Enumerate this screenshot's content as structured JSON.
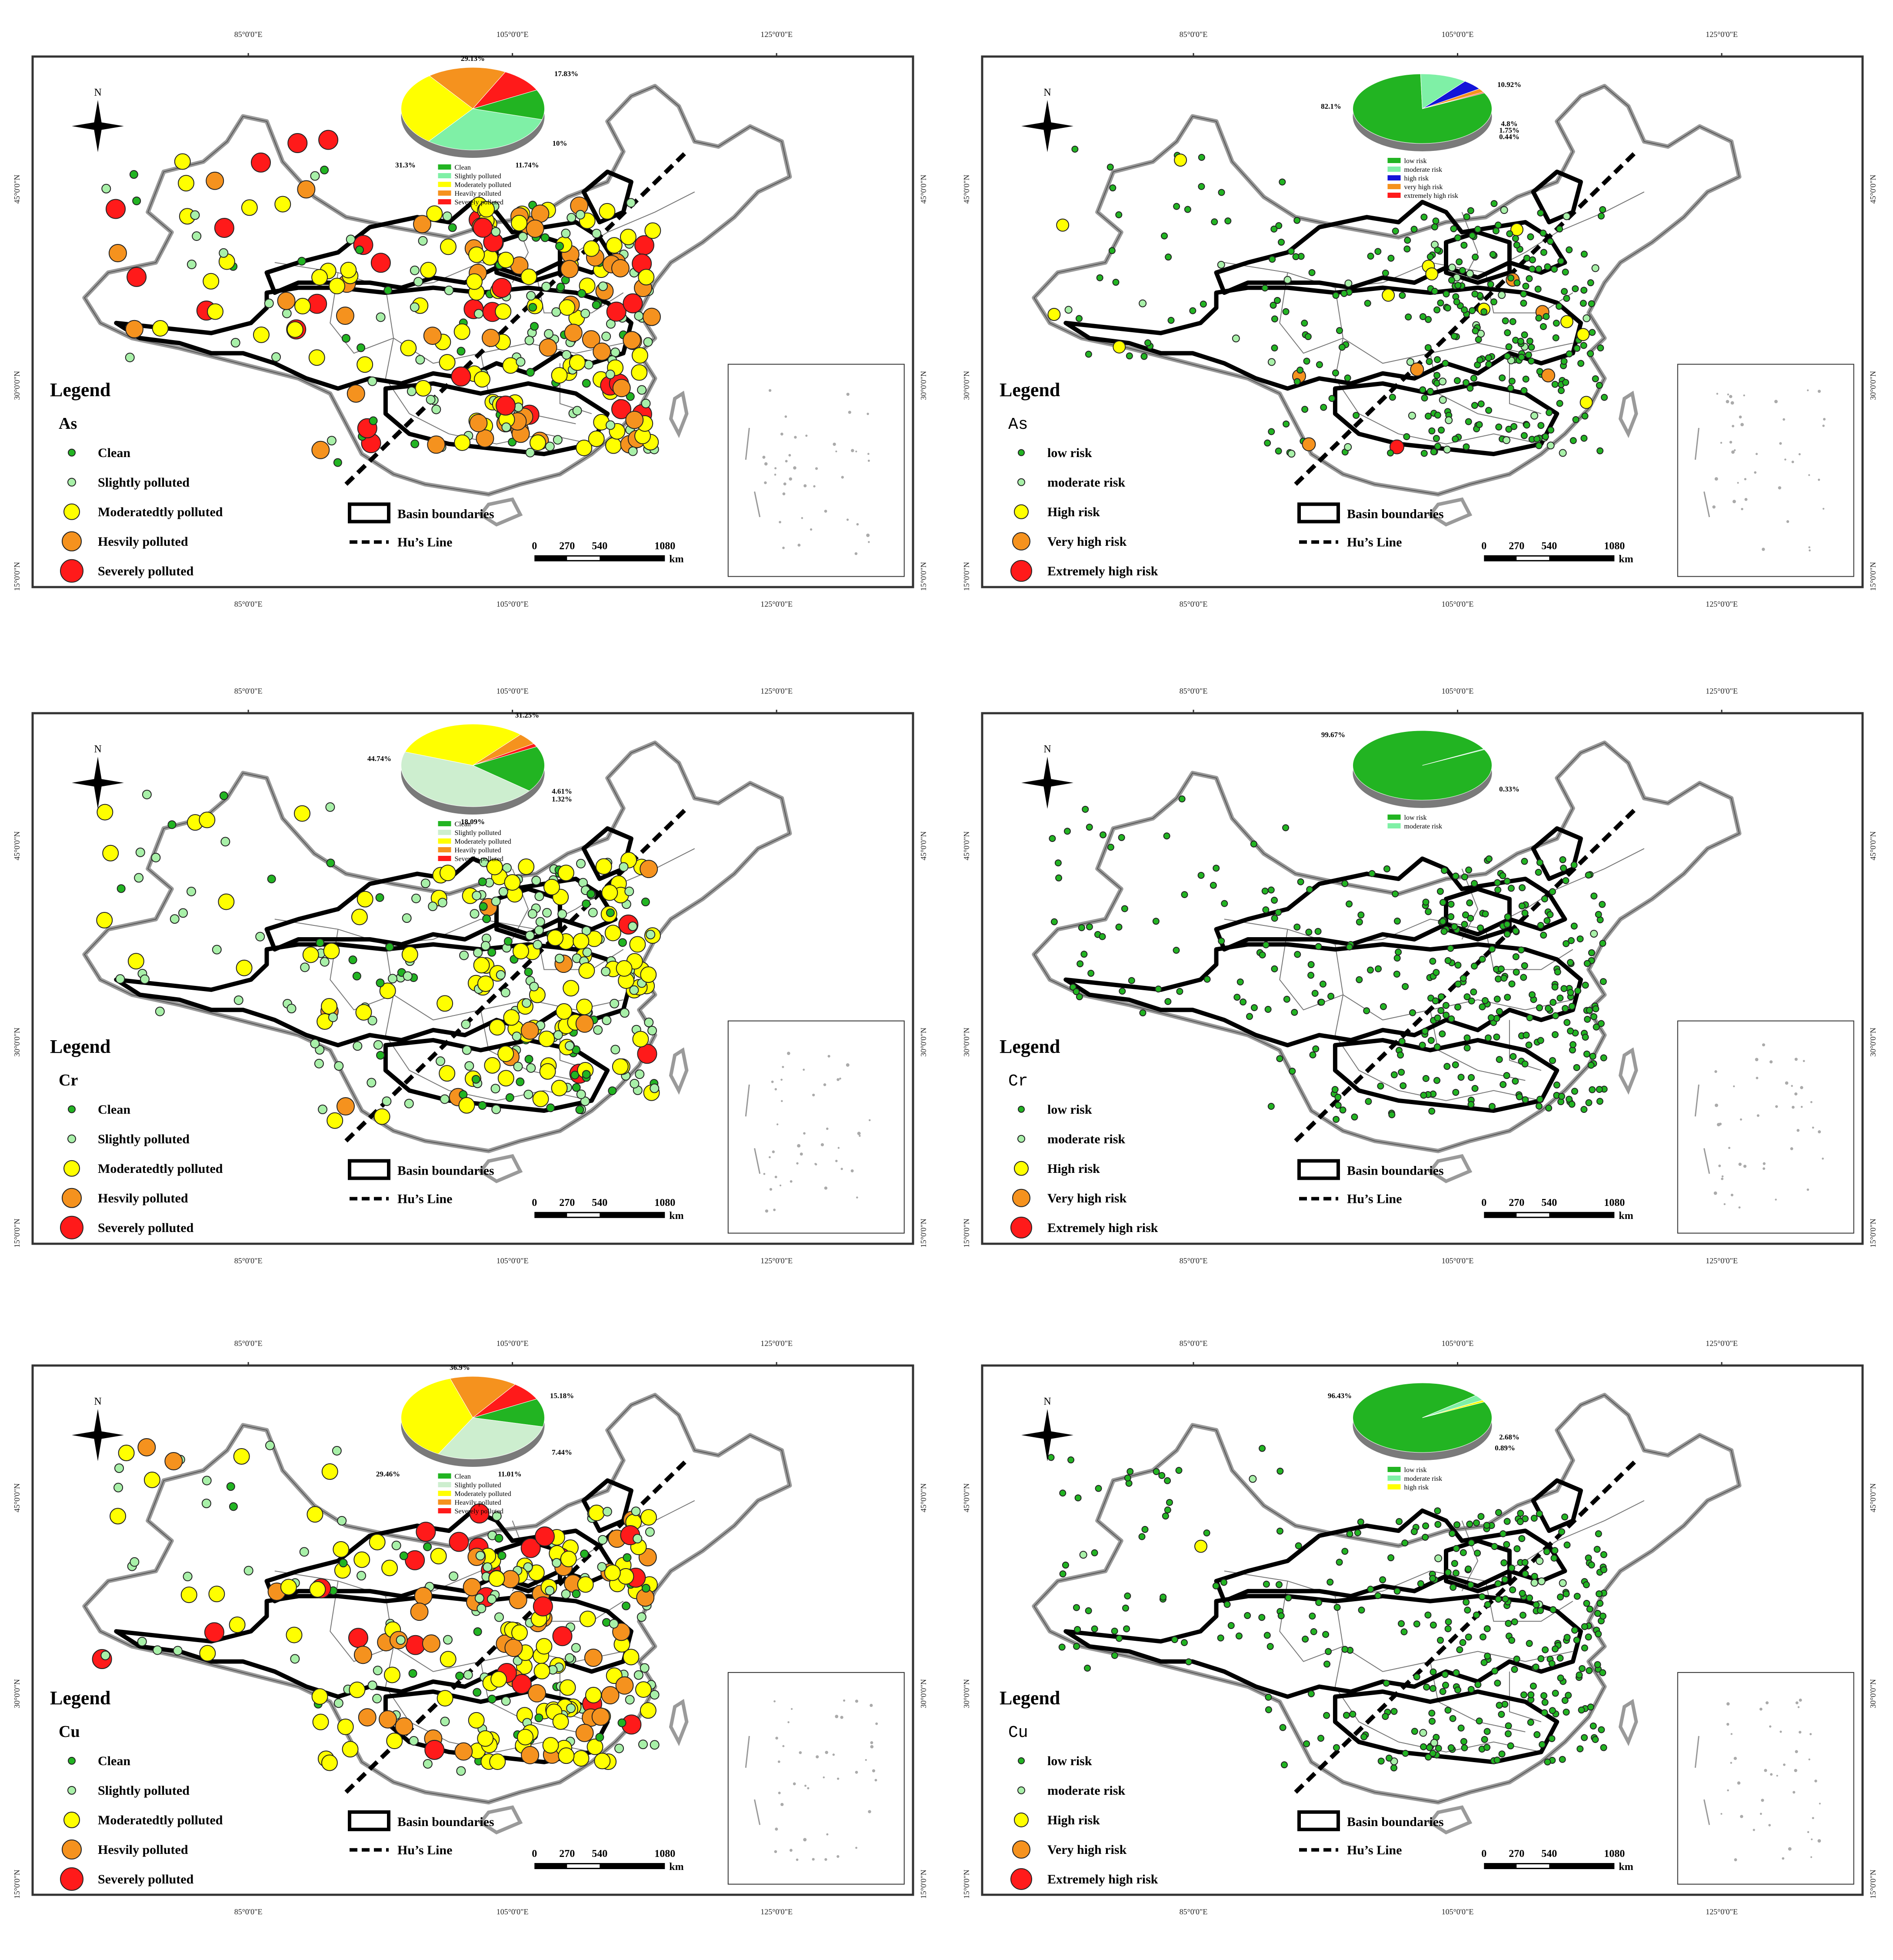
{
  "coords": {
    "lon": [
      "85°0'0\"E",
      "105°0'0\"E",
      "125°0'0\"E"
    ],
    "lat": [
      "45°0'0\"N",
      "30°0'0\"N",
      "15°0'0\"N"
    ]
  },
  "north_label": "N",
  "scale": {
    "ticks": [
      "0",
      "270",
      "540",
      "1080"
    ],
    "unit": "km"
  },
  "lines": {
    "basin": "Basin boundaries",
    "hu": "Hu’s Line"
  },
  "colors": {
    "clean": "#22b422",
    "slight": "#a8f0a8",
    "moderate": "#ffff00",
    "heavy": "#f5921e",
    "severe": "#ff1a1a",
    "lightgreen_pie": "#7ff0a6",
    "pale_green_pie": "#cdeecf",
    "blue": "#1414d8"
  },
  "panels": [
    {
      "id": "as-pollution",
      "legend_title": "Legend",
      "metal": "As",
      "legend_items": [
        "Clean",
        "Slightly polluted",
        "Moderatedtly polluted",
        "Hesvily polluted",
        "Severely polluted"
      ],
      "pie_labels": [
        "29.13%",
        "17.83%",
        "10%",
        "11.74%",
        "31.3%"
      ],
      "pie_legend": [
        "Clean",
        "Slightly polluted",
        "Moderately polluted",
        "Heavily polluted",
        "Severely polluted"
      ],
      "chart_data": {
        "type": "pie",
        "categories": [
          "Clean",
          "Slightly polluted",
          "Moderately polluted",
          "Heavily polluted",
          "Severely polluted"
        ],
        "values": [
          11.74,
          31.3,
          29.13,
          17.83,
          10.0
        ]
      }
    },
    {
      "id": "as-risk",
      "legend_title": "Legend",
      "metal": "As",
      "legend_items": [
        "low risk",
        "moderate risk",
        "High risk",
        "Very high risk",
        "Extremely high risk"
      ],
      "pie_labels": [
        "82.1%",
        "10.92%",
        "4.8%",
        "1.75%",
        "0.44%"
      ],
      "pie_legend": [
        "low risk",
        "moderate risk",
        "high risk",
        "very high risk",
        "extremely high risk"
      ],
      "chart_data": {
        "type": "pie",
        "categories": [
          "low risk",
          "moderate risk",
          "high risk",
          "very high risk",
          "extremely high risk"
        ],
        "values": [
          82.1,
          10.92,
          4.8,
          1.75,
          0.44
        ]
      }
    },
    {
      "id": "cr-pollution",
      "legend_title": "Legend",
      "metal": "Cr",
      "legend_items": [
        "Clean",
        "Slightly polluted",
        "Moderatedtly polluted",
        "Hesvily polluted",
        "Severely polluted"
      ],
      "pie_labels": [
        "31.25%",
        "44.74%",
        "4.61%",
        "1.32%",
        "18.09%"
      ],
      "pie_legend": [
        "Clean",
        "Slightly polluted",
        "Moderately polluted",
        "Heavily polluted",
        "Severely polluted"
      ],
      "chart_data": {
        "type": "pie",
        "categories": [
          "Clean",
          "Slightly polluted",
          "Moderately polluted",
          "Heavily polluted",
          "Severely polluted"
        ],
        "values": [
          18.09,
          44.74,
          31.25,
          4.61,
          1.32
        ]
      }
    },
    {
      "id": "cr-risk",
      "legend_title": "Legend",
      "metal": "Cr",
      "legend_items": [
        "low risk",
        "moderate risk",
        "High risk",
        "Very high risk",
        "Extremely high risk"
      ],
      "pie_labels": [
        "99.67%",
        "0.33%"
      ],
      "pie_legend": [
        "low risk",
        "moderate risk"
      ],
      "chart_data": {
        "type": "pie",
        "categories": [
          "low risk",
          "moderate risk"
        ],
        "values": [
          99.67,
          0.33
        ]
      }
    },
    {
      "id": "cu-pollution",
      "legend_title": "Legend",
      "metal": "Cu",
      "legend_items": [
        "Clean",
        "Slightly polluted",
        "Moderatedtly polluted",
        "Hesvily polluted",
        "Severely polluted"
      ],
      "pie_labels": [
        "36.9%",
        "15.18%",
        "7.44%",
        "11.01%",
        "29.46%"
      ],
      "pie_legend": [
        "Clean",
        "Slightly polluted",
        "Moderately polluted",
        "Heavily polluted",
        "Severely polluted"
      ],
      "chart_data": {
        "type": "pie",
        "categories": [
          "Clean",
          "Slightly polluted",
          "Moderately polluted",
          "Heavily polluted",
          "Severely polluted"
        ],
        "values": [
          11.01,
          29.46,
          36.9,
          15.18,
          7.44
        ]
      }
    },
    {
      "id": "cu-risk",
      "legend_title": "Legend",
      "metal": "Cu",
      "legend_items": [
        "low risk",
        "moderate risk",
        "High risk",
        "Very high risk",
        "Extremely high risk"
      ],
      "pie_labels": [
        "96.43%",
        "2.68%",
        "0.89%"
      ],
      "pie_legend": [
        "low risk",
        "moderate risk",
        "high risk"
      ],
      "chart_data": {
        "type": "pie",
        "categories": [
          "low risk",
          "moderate risk",
          "high risk"
        ],
        "values": [
          96.43,
          2.68,
          0.89
        ]
      }
    }
  ]
}
